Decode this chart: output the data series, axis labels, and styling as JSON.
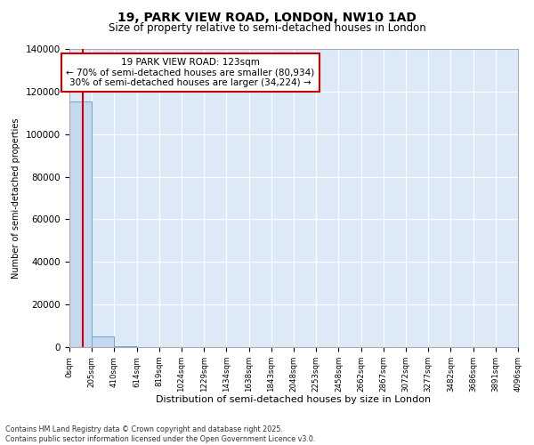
{
  "title1": "19, PARK VIEW ROAD, LONDON, NW10 1AD",
  "title2": "Size of property relative to semi-detached houses in London",
  "xlabel": "Distribution of semi-detached houses by size in London",
  "ylabel": "Number of semi-detached properties",
  "annotation_title": "19 PARK VIEW ROAD: 123sqm",
  "annotation_line1": "← 70% of semi-detached houses are smaller (80,934)",
  "annotation_line2": "30% of semi-detached houses are larger (34,224) →",
  "footnote1": "Contains HM Land Registry data © Crown copyright and database right 2025.",
  "footnote2": "Contains public sector information licensed under the Open Government Licence v3.0.",
  "property_size": 123,
  "bar_edges": [
    0,
    205,
    410,
    614,
    819,
    1024,
    1229,
    1434,
    1638,
    1843,
    2048,
    2253,
    2458,
    2662,
    2867,
    3072,
    3277,
    3482,
    3686,
    3891,
    4096
  ],
  "bar_values": [
    115158,
    5200,
    480,
    180,
    100,
    65,
    45,
    28,
    22,
    18,
    13,
    10,
    9,
    7,
    6,
    5,
    4,
    4,
    3,
    3
  ],
  "bar_color": "#c5d8f0",
  "bar_edge_color": "#6aabd4",
  "vline_color": "#cc0000",
  "annotation_box_color": "#cc0000",
  "plot_bg_color": "#dce9f7",
  "figure_bg_color": "#ffffff",
  "grid_color": "#ffffff",
  "ylim": [
    0,
    140000
  ],
  "yticks": [
    0,
    20000,
    40000,
    60000,
    80000,
    100000,
    120000,
    140000
  ],
  "ytick_labels": [
    "0",
    "20000",
    "40000",
    "60000",
    "80000",
    "100000",
    "120000",
    "140000"
  ],
  "tick_labels": [
    "0sqm",
    "205sqm",
    "410sqm",
    "614sqm",
    "819sqm",
    "1024sqm",
    "1229sqm",
    "1434sqm",
    "1638sqm",
    "1843sqm",
    "2048sqm",
    "2253sqm",
    "2458sqm",
    "2662sqm",
    "2867sqm",
    "3072sqm",
    "3277sqm",
    "3482sqm",
    "3686sqm",
    "3891sqm",
    "4096sqm"
  ]
}
